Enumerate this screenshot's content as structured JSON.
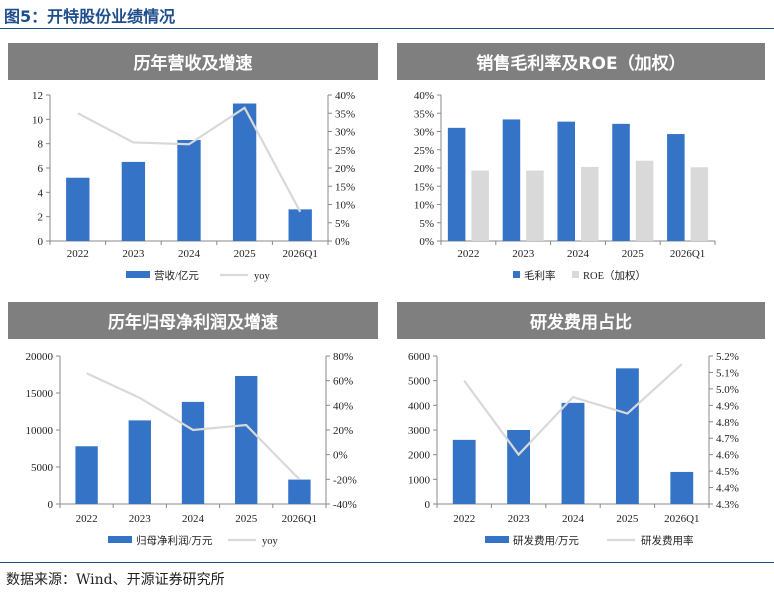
{
  "figure_title": "图5：开特股份业绩情况",
  "source": "数据来源：Wind、开源证券研究所",
  "colors": {
    "bar": "#3573c7",
    "line": "#d9d9d9",
    "header": "#7f7f7f",
    "accent": "#1f4e8c"
  },
  "chart_data": [
    {
      "type": "bar",
      "title": "历年营收及增速",
      "categories": [
        "2022",
        "2023",
        "2024",
        "2025",
        "2026Q1"
      ],
      "series": [
        {
          "name": "营收/亿元",
          "type": "bar",
          "axis": "left",
          "values": [
            5.2,
            6.5,
            8.3,
            11.3,
            2.6
          ]
        },
        {
          "name": "yoy",
          "type": "line",
          "axis": "right",
          "values": [
            35,
            27,
            26.5,
            36.5,
            8
          ]
        }
      ],
      "ylim_left": [
        0,
        12
      ],
      "yticks_left": [
        0,
        2,
        4,
        6,
        8,
        10,
        12
      ],
      "yticklabels_left": [
        "0",
        "2",
        "4",
        "6",
        "8",
        "10",
        "12"
      ],
      "ylim_right": [
        0,
        40
      ],
      "yticks_right": [
        0,
        5,
        10,
        15,
        20,
        25,
        30,
        35,
        40
      ],
      "yticklabels_right": [
        "0%",
        "5%",
        "10%",
        "15%",
        "20%",
        "25%",
        "30%",
        "35%",
        "40%"
      ],
      "grid": false,
      "legend": "bottom"
    },
    {
      "type": "bar",
      "title": "销售毛利率及ROE（加权）",
      "categories": [
        "2022",
        "2023",
        "2024",
        "2025",
        "2026Q1"
      ],
      "series": [
        {
          "name": "毛利率",
          "type": "bar",
          "axis": "left",
          "values": [
            31.0,
            33.3,
            32.7,
            32.1,
            29.3
          ]
        },
        {
          "name": "ROE（加权）",
          "type": "bar",
          "axis": "left",
          "values": [
            19.3,
            19.3,
            20.3,
            22.0,
            20.2
          ]
        }
      ],
      "ylim_left": [
        0,
        40
      ],
      "yticks_left": [
        0,
        5,
        10,
        15,
        20,
        25,
        30,
        35,
        40
      ],
      "yticklabels_left": [
        "0%",
        "5%",
        "10%",
        "15%",
        "20%",
        "25%",
        "30%",
        "35%",
        "40%"
      ],
      "grid": false,
      "legend": "bottom"
    },
    {
      "type": "bar",
      "title": "历年归母净利润及增速",
      "categories": [
        "2022",
        "2023",
        "2024",
        "2025",
        "2026Q1"
      ],
      "series": [
        {
          "name": "归母净利润/万元",
          "type": "bar",
          "axis": "left",
          "values": [
            7800,
            11300,
            13800,
            17300,
            3300
          ]
        },
        {
          "name": "yoy",
          "type": "line",
          "axis": "right",
          "values": [
            66,
            46,
            20,
            24,
            -20
          ]
        }
      ],
      "ylim_left": [
        0,
        20000
      ],
      "yticks_left": [
        0,
        5000,
        10000,
        15000,
        20000
      ],
      "yticklabels_left": [
        "0",
        "5000",
        "10000",
        "15000",
        "20000"
      ],
      "ylim_right": [
        -40,
        80
      ],
      "yticks_right": [
        -40,
        -20,
        0,
        20,
        40,
        60,
        80
      ],
      "yticklabels_right": [
        "-40%",
        "-20%",
        "0%",
        "20%",
        "40%",
        "60%",
        "80%"
      ],
      "grid": false,
      "legend": "bottom"
    },
    {
      "type": "bar",
      "title": "研发费用占比",
      "categories": [
        "2022",
        "2023",
        "2024",
        "2025",
        "2026Q1"
      ],
      "series": [
        {
          "name": "研发费用/万元",
          "type": "bar",
          "axis": "left",
          "values": [
            2600,
            3000,
            4100,
            5500,
            1300
          ]
        },
        {
          "name": "研发费用率",
          "type": "line",
          "axis": "right",
          "values": [
            5.05,
            4.6,
            4.95,
            4.85,
            5.15
          ]
        }
      ],
      "ylim_left": [
        0,
        6000
      ],
      "yticks_left": [
        0,
        1000,
        2000,
        3000,
        4000,
        5000,
        6000
      ],
      "yticklabels_left": [
        "0",
        "1000",
        "2000",
        "3000",
        "4000",
        "5000",
        "6000"
      ],
      "ylim_right": [
        4.3,
        5.2
      ],
      "yticks_right": [
        4.3,
        4.4,
        4.5,
        4.6,
        4.7,
        4.8,
        4.9,
        5.0,
        5.1,
        5.2
      ],
      "yticklabels_right": [
        "4.3%",
        "4.4%",
        "4.5%",
        "4.6%",
        "4.7%",
        "4.8%",
        "4.9%",
        "5.0%",
        "5.1%",
        "5.2%"
      ],
      "grid": false,
      "legend": "bottom"
    }
  ]
}
